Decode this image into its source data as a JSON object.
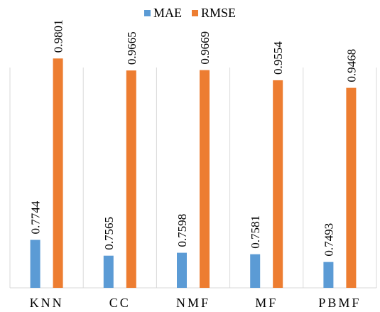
{
  "chart_data": {
    "type": "bar",
    "categories": [
      "KNN",
      "CC",
      "NMF",
      "MF",
      "PBMF"
    ],
    "series": [
      {
        "name": "MAE",
        "values": [
          0.7744,
          0.7565,
          0.7598,
          0.7581,
          0.7493
        ]
      },
      {
        "name": "RMSE",
        "values": [
          0.9801,
          0.9665,
          0.9669,
          0.9554,
          0.9468
        ]
      }
    ],
    "data_labels": {
      "MAE": [
        "0.7744",
        "0.7565",
        "0.7598",
        "0.7581",
        "0.7493"
      ],
      "RMSE": [
        "0.9801",
        "0.9665",
        "0.9669",
        "0.9554",
        "0.9468"
      ]
    },
    "title": "",
    "xlabel": "",
    "ylabel": "",
    "ylim": [
      0.72,
      0.99
    ],
    "grid": false,
    "legend_position": "top",
    "colors": {
      "MAE": "#5b9bd5",
      "RMSE": "#ed7d31"
    },
    "axis_color": "#d9d9d9"
  }
}
